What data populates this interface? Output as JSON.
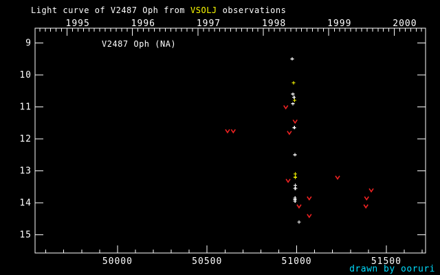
{
  "title": {
    "prefix": "Light curve of V2487 Oph from",
    "highlight": "VSOLJ",
    "suffix": "observations"
  },
  "object_label": "V2487 Oph (NA)",
  "credit": "drawn by ooruri",
  "colors": {
    "background": "#000000",
    "axis": "#ffffff",
    "title_text": "#ffffff",
    "title_highlight": "#ffff00",
    "detection_white": "#ffffff",
    "detection_yellow": "#ffff00",
    "upper_limit_red": "#ee2222",
    "credit_text": "#00ddff"
  },
  "chart_data": {
    "type": "scatter",
    "title": "Light curve of V2487 Oph from VSOLJ observations",
    "xlabel": "",
    "ylabel": "",
    "grid": false,
    "axes": {
      "x": {
        "unit": "JD - 2400000",
        "lim": [
          49540,
          51719
        ],
        "bottom_major_ticks": [
          50000,
          50500,
          51000,
          51500
        ],
        "bottom_major_labels": [
          "50000",
          "50500",
          "51000",
          "51500"
        ],
        "bottom_minor_step": 100,
        "top_year_ticks": [
          {
            "label": "1995",
            "jd": 49718.5
          },
          {
            "label": "1996",
            "jd": 50083.5
          },
          {
            "label": "1997",
            "jd": 50448.5
          },
          {
            "label": "1998",
            "jd": 50813.5
          },
          {
            "label": "1999",
            "jd": 51178.5
          },
          {
            "label": "2000",
            "jd": 51543.5
          }
        ],
        "top_minor_interval_days": 30.4375
      },
      "y": {
        "unit": "magnitude",
        "lim_bright_top": 8.54,
        "lim_faint_bottom": 15.57,
        "major_ticks": [
          9,
          10,
          11,
          12,
          13,
          14,
          15
        ],
        "major_labels": [
          "9",
          "10",
          "11",
          "12",
          "13",
          "14",
          "15"
        ],
        "inverted": true
      }
    },
    "series": [
      {
        "name": "detections-white",
        "marker": "plus",
        "color": "#ffffff",
        "points": [
          {
            "jd": 50975,
            "mag": 9.5
          },
          {
            "jd": 50979,
            "mag": 10.6
          },
          {
            "jd": 50985,
            "mag": 10.7
          },
          {
            "jd": 50979,
            "mag": 10.9
          },
          {
            "jd": 50987,
            "mag": 11.65
          },
          {
            "jd": 50990,
            "mag": 12.5
          },
          {
            "jd": 50992,
            "mag": 13.45
          },
          {
            "jd": 50991,
            "mag": 13.55
          },
          {
            "jd": 50993,
            "mag": 13.55
          },
          {
            "jd": 50991,
            "mag": 13.85
          },
          {
            "jd": 50991,
            "mag": 13.9
          },
          {
            "jd": 50991,
            "mag": 13.95
          },
          {
            "jd": 51013,
            "mag": 14.6
          }
        ]
      },
      {
        "name": "detections-yellow",
        "marker": "plus",
        "color": "#ffff00",
        "points": [
          {
            "jd": 50982,
            "mag": 10.25
          },
          {
            "jd": 50988,
            "mag": 10.8
          },
          {
            "jd": 50992,
            "mag": 13.1
          },
          {
            "jd": 50992,
            "mag": 13.2
          }
        ]
      },
      {
        "name": "upper-limits-red",
        "marker": "v",
        "color": "#ee2222",
        "points": [
          {
            "jd": 50614,
            "mag": 11.75
          },
          {
            "jd": 50646,
            "mag": 11.75
          },
          {
            "jd": 50939,
            "mag": 11.0
          },
          {
            "jd": 50959,
            "mag": 11.8
          },
          {
            "jd": 50991,
            "mag": 11.45
          },
          {
            "jd": 50952,
            "mag": 13.3
          },
          {
            "jd": 51013,
            "mag": 14.1
          },
          {
            "jd": 51070,
            "mag": 13.85
          },
          {
            "jd": 51070,
            "mag": 14.4
          },
          {
            "jd": 51228,
            "mag": 13.2
          },
          {
            "jd": 51390,
            "mag": 13.85
          },
          {
            "jd": 51386,
            "mag": 14.1
          },
          {
            "jd": 51416,
            "mag": 13.6
          }
        ]
      }
    ]
  }
}
